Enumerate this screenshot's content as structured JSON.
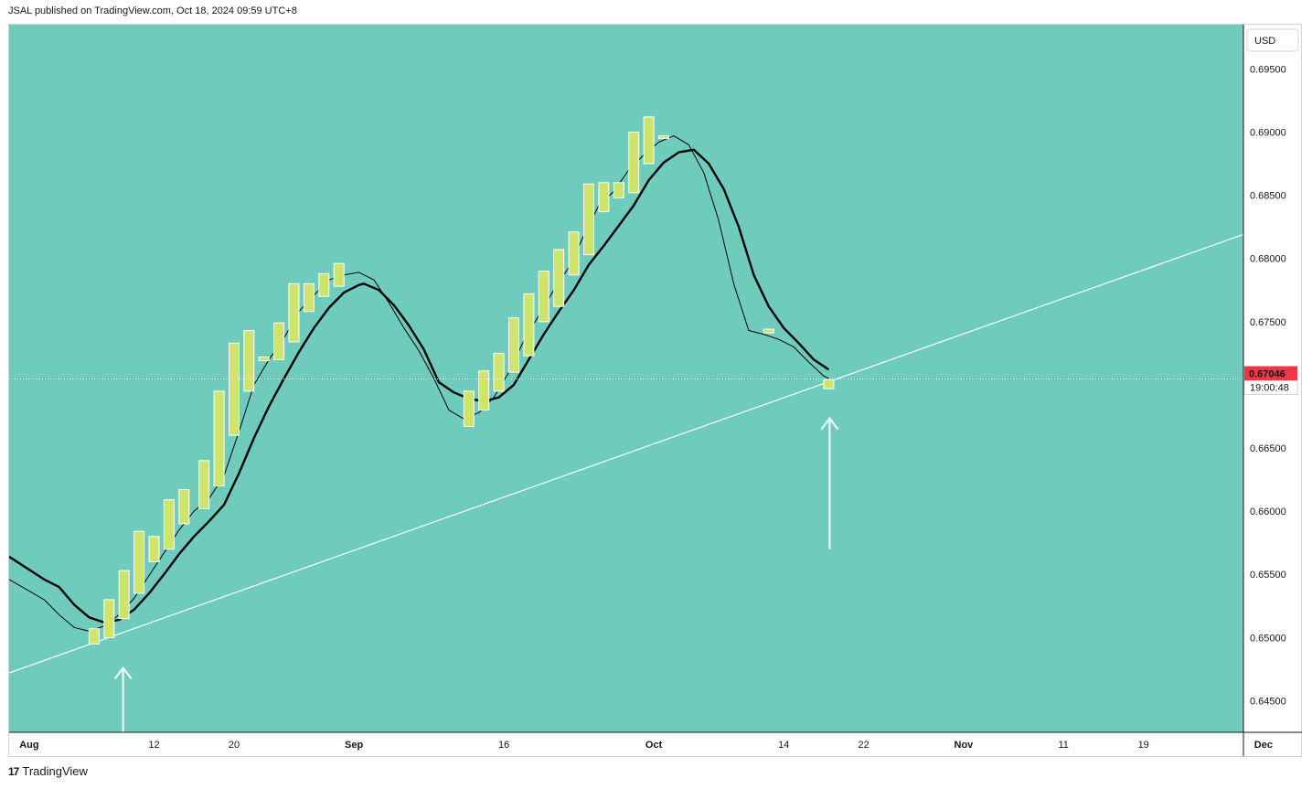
{
  "header": {
    "published_text": "JSAL published on TradingView.com, Oct 18, 2024 09:59 UTC+8"
  },
  "footer": {
    "brand_label": "TradingView",
    "logo_glyph": "17"
  },
  "colors": {
    "plot_bg": "#6fccbd",
    "candle_fill": "#cfe46a",
    "candle_border": "#ffffff",
    "ma_line": "#000000",
    "trendline": "#ffffff",
    "last_price_badge": "#f23645",
    "axis_bg": "#ffffff"
  },
  "chart_data": {
    "type": "candlestick",
    "symbol_currency": "USD",
    "y_axis": {
      "range": [
        0.6425,
        0.6985
      ],
      "ticks": [
        0.645,
        0.65,
        0.655,
        0.66,
        0.665,
        0.67,
        0.675,
        0.68,
        0.685,
        0.69,
        0.695
      ],
      "tick_labels": [
        "0.64500",
        "0.65000",
        "0.65500",
        "0.66000",
        "0.66500",
        "0.67000",
        "0.67500",
        "0.68000",
        "0.68500",
        "0.69000",
        "0.69500"
      ]
    },
    "x_axis": {
      "range_days": [
        -3.5,
        120
      ],
      "ticks": [
        {
          "label": "Aug",
          "day": -1.5
        },
        {
          "label": "12",
          "day": 11
        },
        {
          "label": "20",
          "day": 19
        },
        {
          "label": "Sep",
          "day": 31
        },
        {
          "label": "16",
          "day": 46
        },
        {
          "label": "Oct",
          "day": 61
        },
        {
          "label": "14",
          "day": 74
        },
        {
          "label": "22",
          "day": 82
        },
        {
          "label": "Nov",
          "day": 92
        },
        {
          "label": "11",
          "day": 102
        },
        {
          "label": "19",
          "day": 110
        },
        {
          "label": "Dec",
          "day": 122
        }
      ]
    },
    "last_price": {
      "value": 0.67046,
      "label": "0.67046",
      "countdown": "19:00:48"
    },
    "candles": [
      {
        "day": 5,
        "open": 0.6495,
        "close": 0.6507
      },
      {
        "day": 6.5,
        "open": 0.65,
        "close": 0.653
      },
      {
        "day": 8,
        "open": 0.6515,
        "close": 0.6553
      },
      {
        "day": 9.5,
        "open": 0.6535,
        "close": 0.6584
      },
      {
        "day": 11,
        "open": 0.656,
        "close": 0.658
      },
      {
        "day": 12.5,
        "open": 0.657,
        "close": 0.6609
      },
      {
        "day": 14,
        "open": 0.659,
        "close": 0.6617
      },
      {
        "day": 16,
        "open": 0.6602,
        "close": 0.664
      },
      {
        "day": 17.5,
        "open": 0.662,
        "close": 0.6695
      },
      {
        "day": 19,
        "open": 0.666,
        "close": 0.6733
      },
      {
        "day": 20.5,
        "open": 0.6695,
        "close": 0.6743
      },
      {
        "day": 22,
        "open": 0.6719,
        "close": 0.6722
      },
      {
        "day": 23.5,
        "open": 0.672,
        "close": 0.6749
      },
      {
        "day": 25,
        "open": 0.6734,
        "close": 0.678
      },
      {
        "day": 26.5,
        "open": 0.6758,
        "close": 0.678
      },
      {
        "day": 28,
        "open": 0.677,
        "close": 0.6788
      },
      {
        "day": 29.5,
        "open": 0.6778,
        "close": 0.6796
      },
      {
        "day": 42.5,
        "open": 0.6667,
        "close": 0.6695
      },
      {
        "day": 44,
        "open": 0.668,
        "close": 0.6711
      },
      {
        "day": 45.5,
        "open": 0.6695,
        "close": 0.6725
      },
      {
        "day": 47,
        "open": 0.671,
        "close": 0.6753
      },
      {
        "day": 48.5,
        "open": 0.6723,
        "close": 0.6772
      },
      {
        "day": 50,
        "open": 0.675,
        "close": 0.679
      },
      {
        "day": 51.5,
        "open": 0.6762,
        "close": 0.6807
      },
      {
        "day": 53,
        "open": 0.6787,
        "close": 0.6821
      },
      {
        "day": 54.5,
        "open": 0.6803,
        "close": 0.6859
      },
      {
        "day": 56,
        "open": 0.6837,
        "close": 0.686
      },
      {
        "day": 57.5,
        "open": 0.6848,
        "close": 0.686
      },
      {
        "day": 59,
        "open": 0.6852,
        "close": 0.69
      },
      {
        "day": 60.5,
        "open": 0.6875,
        "close": 0.6912
      },
      {
        "day": 62,
        "open": 0.6895,
        "close": 0.6897
      },
      {
        "day": 72.5,
        "open": 0.6741,
        "close": 0.6744
      },
      {
        "day": 78.5,
        "open": 0.6697,
        "close": 0.6704
      }
    ],
    "series": [
      {
        "name": "slow MA (thick)",
        "points": [
          [
            -3.5,
            0.6564
          ],
          [
            0,
            0.6546
          ],
          [
            1.5,
            0.654
          ],
          [
            3,
            0.6526
          ],
          [
            4.5,
            0.6516
          ],
          [
            6,
            0.6512
          ],
          [
            7.5,
            0.6514
          ],
          [
            9,
            0.6522
          ],
          [
            10.5,
            0.6535
          ],
          [
            12,
            0.655
          ],
          [
            13.5,
            0.6566
          ],
          [
            15,
            0.658
          ],
          [
            16.5,
            0.6592
          ],
          [
            18,
            0.6605
          ],
          [
            19.5,
            0.663
          ],
          [
            21,
            0.6658
          ],
          [
            22.5,
            0.6683
          ],
          [
            24,
            0.6705
          ],
          [
            25.5,
            0.6726
          ],
          [
            27,
            0.6745
          ],
          [
            28.5,
            0.6761
          ],
          [
            30,
            0.6773
          ],
          [
            31.5,
            0.6779
          ],
          [
            32,
            0.678
          ],
          [
            33.5,
            0.6775
          ],
          [
            35,
            0.6763
          ],
          [
            36.5,
            0.6747
          ],
          [
            38,
            0.6728
          ],
          [
            39.5,
            0.6702
          ],
          [
            41,
            0.6694
          ],
          [
            42.5,
            0.6689
          ],
          [
            44,
            0.6687
          ],
          [
            45.5,
            0.669
          ],
          [
            47,
            0.67
          ],
          [
            48.5,
            0.672
          ],
          [
            50,
            0.674
          ],
          [
            51.5,
            0.6758
          ],
          [
            53,
            0.6775
          ],
          [
            54.5,
            0.6795
          ],
          [
            56,
            0.681
          ],
          [
            57.5,
            0.6826
          ],
          [
            59,
            0.6842
          ],
          [
            60.5,
            0.6862
          ],
          [
            62,
            0.6876
          ],
          [
            63.5,
            0.6884
          ],
          [
            65,
            0.6886
          ],
          [
            66.5,
            0.6875
          ],
          [
            68,
            0.6855
          ],
          [
            69.5,
            0.6825
          ],
          [
            71,
            0.6787
          ],
          [
            72.5,
            0.6762
          ],
          [
            74,
            0.6745
          ],
          [
            75.5,
            0.6733
          ],
          [
            77,
            0.672
          ],
          [
            78.5,
            0.6712
          ]
        ]
      },
      {
        "name": "fast MA (thin)",
        "points": [
          [
            -3.5,
            0.6546
          ],
          [
            0,
            0.653
          ],
          [
            1.5,
            0.6518
          ],
          [
            3,
            0.6508
          ],
          [
            4.5,
            0.6505
          ],
          [
            6,
            0.6509
          ],
          [
            7.5,
            0.6518
          ],
          [
            9,
            0.6531
          ],
          [
            10.5,
            0.6549
          ],
          [
            12,
            0.6567
          ],
          [
            13.5,
            0.6585
          ],
          [
            15,
            0.66
          ],
          [
            16.5,
            0.661
          ],
          [
            18,
            0.6628
          ],
          [
            19.5,
            0.6663
          ],
          [
            21,
            0.67
          ],
          [
            22.5,
            0.672
          ],
          [
            24,
            0.6737
          ],
          [
            25.5,
            0.6758
          ],
          [
            27,
            0.6771
          ],
          [
            28.5,
            0.6783
          ],
          [
            30,
            0.6787
          ],
          [
            31.5,
            0.6789
          ],
          [
            33,
            0.6783
          ],
          [
            34.5,
            0.6765
          ],
          [
            36,
            0.6745
          ],
          [
            37.5,
            0.6727
          ],
          [
            39,
            0.6705
          ],
          [
            40.5,
            0.668
          ],
          [
            42,
            0.6673
          ],
          [
            43.5,
            0.6678
          ],
          [
            45,
            0.669
          ],
          [
            46.5,
            0.671
          ],
          [
            48,
            0.6735
          ],
          [
            49.5,
            0.6755
          ],
          [
            51,
            0.6775
          ],
          [
            52.5,
            0.6793
          ],
          [
            54,
            0.6818
          ],
          [
            55.5,
            0.6842
          ],
          [
            57,
            0.6853
          ],
          [
            58.5,
            0.687
          ],
          [
            60,
            0.6882
          ],
          [
            61.5,
            0.6892
          ],
          [
            63,
            0.6897
          ],
          [
            64.5,
            0.689
          ],
          [
            66,
            0.6868
          ],
          [
            67.5,
            0.683
          ],
          [
            69,
            0.678
          ],
          [
            70.5,
            0.6743
          ],
          [
            72,
            0.674
          ],
          [
            73.5,
            0.6736
          ],
          [
            75,
            0.673
          ],
          [
            76.5,
            0.6718
          ],
          [
            78,
            0.6707
          ],
          [
            78.5,
            0.6705
          ]
        ]
      }
    ],
    "trendline": {
      "start": {
        "day": -3.5,
        "price": 0.6472
      },
      "end": {
        "day": 120,
        "price": 0.6819
      }
    },
    "annotations": [
      {
        "type": "arrow_up",
        "day": 7.9,
        "price_tip": 0.6476,
        "price_tail": 0.6425
      },
      {
        "type": "arrow_up",
        "day": 78.6,
        "price_tip": 0.66735,
        "price_tail": 0.657
      }
    ]
  }
}
